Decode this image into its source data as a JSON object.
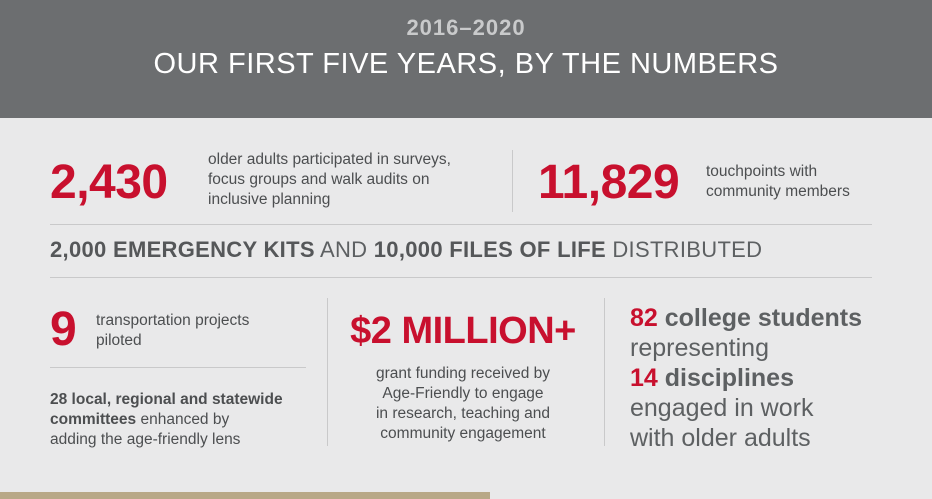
{
  "header": {
    "years": "2016–2020",
    "title": "OUR FIRST FIVE YEARS, BY THE NUMBERS"
  },
  "stats": {
    "participants": {
      "number": "2,430",
      "line1": "older adults participated in surveys,",
      "line2": "focus groups and walk audits on",
      "line3": "inclusive planning"
    },
    "touchpoints": {
      "number": "11,829",
      "line1": "touchpoints with",
      "line2": "community members"
    },
    "kits": {
      "part1": "2,000 EMERGENCY KITS",
      "part2": " AND ",
      "part3": "10,000 FILES OF LIFE",
      "part4": " DISTRIBUTED"
    },
    "transportation": {
      "number": "9",
      "line1": "transportation projects",
      "line2": "piloted"
    },
    "committees": {
      "bold1": "28 local, regional and statewide",
      "bold2": "committees",
      "rest2": " enhanced by",
      "line3": "adding the age-friendly lens"
    },
    "grant": {
      "number": "$2 MILLION+",
      "line1": "grant funding received by",
      "line2": "Age-Friendly to engage",
      "line3": "in research, teaching and",
      "line4": "community engagement"
    },
    "students": {
      "num1": "82",
      "bold1": " college students",
      "line2": "representing",
      "num2": "14",
      "bold2": " disciplines",
      "line4": "engaged in work",
      "line5": "with older adults"
    }
  },
  "colors": {
    "accent": "#c8102e",
    "header_bg": "#6c6e70",
    "body_bg": "#e9e9ea",
    "text": "#5d6062"
  }
}
